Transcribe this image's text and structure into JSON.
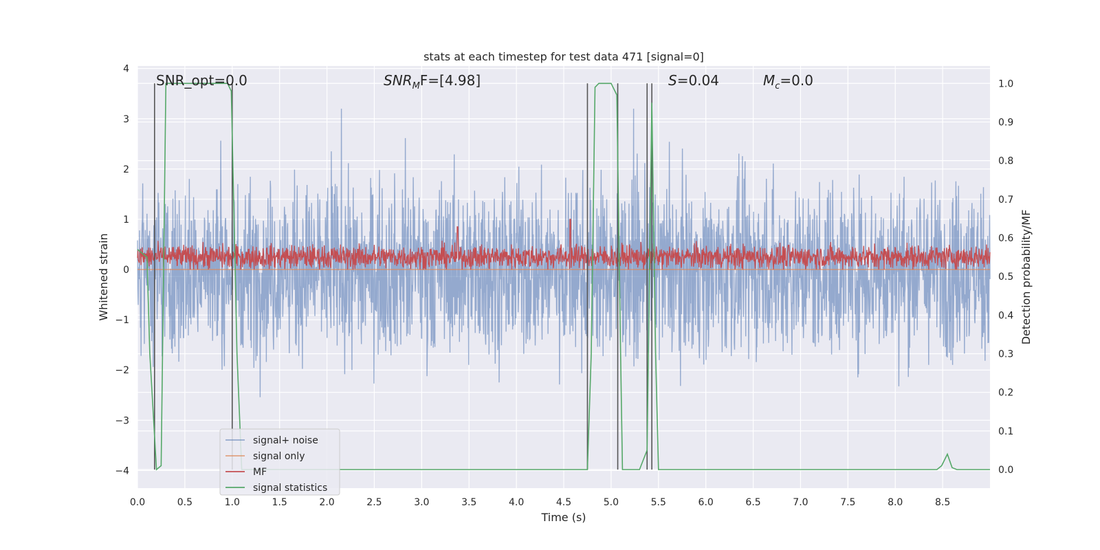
{
  "chart_data": {
    "type": "line",
    "title": "stats at each timestep for test data 471 [signal=0]",
    "xlabel": "Time (s)",
    "ylabel": "Whitened strain",
    "ylabel_right": "Detection probability/MF",
    "xlim": [
      0,
      9.0
    ],
    "ylim": [
      -4.35,
      4.05
    ],
    "ylim_right": [
      -0.048,
      1.045
    ],
    "xticks": [
      "0.0",
      "0.5",
      "1.0",
      "1.5",
      "2.0",
      "2.5",
      "3.0",
      "3.5",
      "4.0",
      "4.5",
      "5.0",
      "5.5",
      "6.0",
      "6.5",
      "7.0",
      "7.5",
      "8.0",
      "8.5"
    ],
    "yticks": [
      "4",
      "3",
      "2",
      "1",
      "0",
      "−1",
      "−2",
      "−3",
      "−4"
    ],
    "yticks_right": [
      "1.0",
      "0.9",
      "0.8",
      "0.7",
      "0.6",
      "0.5",
      "0.4",
      "0.3",
      "0.2",
      "0.1",
      "0.0"
    ],
    "annotations": {
      "snr_opt": "SNR_opt=0.0",
      "snr_mf": {
        "base": "SNR",
        "sub": "M",
        "rest": "F=[4.98]"
      },
      "s": {
        "base": "S",
        "rest": "=0.04"
      },
      "mc": {
        "base": "M",
        "sub": "c",
        "rest": "=0.0"
      }
    },
    "grid": true,
    "legend_position": "lower-left",
    "series": [
      {
        "name": "signal+ noise",
        "color": "#4c72b0",
        "kind": "noise",
        "axis": "left",
        "std": 0.85,
        "peak_range": [
          -3.9,
          3.2
        ]
      },
      {
        "name": "signal only",
        "color": "#dd8452",
        "kind": "flat",
        "axis": "left",
        "values_constant": 0.0
      },
      {
        "name": "MF",
        "color": "#c44e52",
        "kind": "noise",
        "axis": "left",
        "center": 0.25,
        "std": 0.12,
        "peak_times": [
          3.38,
          4.57
        ],
        "peak_values": [
          0.85,
          1.0
        ]
      },
      {
        "name": "signal statistics",
        "color": "#55a868",
        "axis": "right",
        "x": [
          0.0,
          0.1,
          0.13,
          0.2,
          0.25,
          0.3,
          0.95,
          0.99,
          1.05,
          1.1,
          4.75,
          4.79,
          4.83,
          4.87,
          4.95,
          5.0,
          5.06,
          5.1,
          5.12,
          5.3,
          5.38,
          5.43,
          5.47,
          5.5,
          5.6,
          8.44,
          8.49,
          8.55,
          8.6,
          8.65,
          9.0
        ],
        "y": [
          0.57,
          0.55,
          0.3,
          0.0,
          0.01,
          1.0,
          1.0,
          0.98,
          0.3,
          0.0,
          0.0,
          0.3,
          0.99,
          1.0,
          1.0,
          1.0,
          0.97,
          0.3,
          0.0,
          0.0,
          0.05,
          0.95,
          0.3,
          0.0,
          0.0,
          0.0,
          0.01,
          0.04,
          0.005,
          0.0,
          0.0
        ]
      }
    ],
    "vertical_markers": [
      0.18,
      1.0,
      4.75,
      5.07,
      5.38,
      5.43
    ]
  }
}
